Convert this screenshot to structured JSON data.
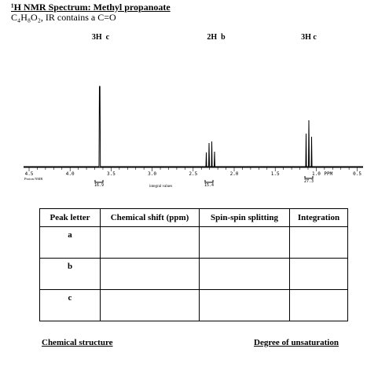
{
  "header": {
    "title": "¹H NMR Spectrum: Methyl propanoate",
    "subtitle": "C₄H₈O₂, IR contains a C=O"
  },
  "spectrum": {
    "peak_labels": [
      "3H  c",
      "2H  b",
      "3H c"
    ],
    "ticks": [
      "4.5",
      "4.0",
      "3.5",
      "3.0",
      "2.5",
      "2.0",
      "1.5",
      "1.0",
      "0.5"
    ],
    "unit": "PPM",
    "axis_note": "Proton NMR",
    "integrals": [
      "16.9",
      "15.4",
      "27.3"
    ],
    "integral_caption": "integral values"
  },
  "table": {
    "columns": [
      "Peak letter",
      "Chemical shift (ppm)",
      "Spin-spin splitting",
      "Integration"
    ],
    "rows": [
      [
        "a"
      ],
      [
        "b"
      ],
      [
        "c"
      ]
    ]
  },
  "footer": {
    "left": "Chemical structure",
    "right": "Degree of unsaturation"
  }
}
